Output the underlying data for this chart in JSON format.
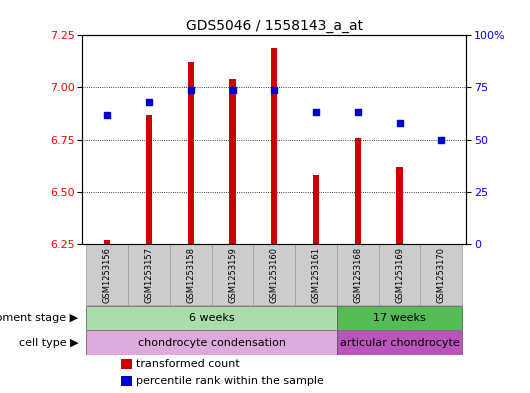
{
  "title": "GDS5046 / 1558143_a_at",
  "samples": [
    "GSM1253156",
    "GSM1253157",
    "GSM1253158",
    "GSM1253159",
    "GSM1253160",
    "GSM1253161",
    "GSM1253168",
    "GSM1253169",
    "GSM1253170"
  ],
  "bar_values": [
    6.27,
    6.87,
    7.12,
    7.04,
    7.19,
    6.58,
    6.76,
    6.62,
    6.25
  ],
  "percentile_values": [
    62,
    68,
    74,
    74,
    74,
    63,
    63,
    58,
    50
  ],
  "bar_bottom": 6.25,
  "ylim": [
    6.25,
    7.25
  ],
  "ylim_right": [
    0,
    100
  ],
  "yticks_left": [
    6.25,
    6.5,
    6.75,
    7.0,
    7.25
  ],
  "yticks_right": [
    0,
    25,
    50,
    75,
    100
  ],
  "bar_color": "#cc0000",
  "percentile_color": "#0000cc",
  "background_color": "#ffffff",
  "plot_bg_color": "#ffffff",
  "dev_group1_color": "#aaddaa",
  "dev_group2_color": "#55bb55",
  "cell_group1_color": "#ddaadd",
  "cell_group2_color": "#bb55bb",
  "sample_box_color": "#cccccc",
  "row_label_dev": "development stage",
  "row_label_cell": "cell type",
  "legend_items": [
    "transformed count",
    "percentile rank within the sample"
  ],
  "title_fontsize": 10,
  "tick_fontsize": 8,
  "label_fontsize": 8.5,
  "bar_width": 0.15
}
